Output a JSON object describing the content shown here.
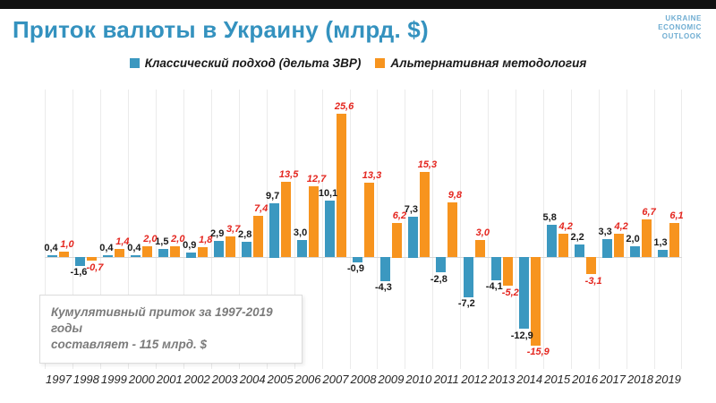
{
  "header": {
    "title": "Приток валюты в Украину (млрд. $)",
    "logo_lines": [
      "UKRAINE",
      "ECONOMIC",
      "OUTLOOK"
    ]
  },
  "annotation": {
    "line1": "Кумулятивный приток за 1997-2019 годы",
    "line2": "составляет - 115 млрд. $"
  },
  "colors": {
    "title_blue": "#3492bf",
    "logo_blue": "#6fadd2",
    "classic_bar": "#3b98c0",
    "alt_bar": "#f7941e",
    "classic_label": "#1a1a1a",
    "alt_label": "#e4261f",
    "topbar": "#111111"
  },
  "chart_data": {
    "type": "bar",
    "title": "Приток валюты в Украину (млрд. $)",
    "categories": [
      "1997",
      "1998",
      "1999",
      "2000",
      "2001",
      "2002",
      "2003",
      "2004",
      "2005",
      "2006",
      "2007",
      "2008",
      "2009",
      "2010",
      "2011",
      "2012",
      "2013",
      "2014",
      "2015",
      "2016",
      "2017",
      "2018",
      "2019"
    ],
    "series": [
      {
        "name": "Классический подход (дельта ЗВР)",
        "color": "#3b98c0",
        "label_color": "#1a1a1a",
        "values": [
          0.4,
          -1.6,
          0.4,
          0.4,
          1.5,
          0.9,
          2.9,
          2.8,
          9.7,
          3.0,
          10.1,
          -0.9,
          -4.3,
          7.3,
          -2.8,
          -7.2,
          -4.1,
          -12.9,
          5.8,
          2.2,
          3.3,
          2.0,
          1.3
        ],
        "labels": [
          "0,4",
          "-1,6",
          "0,4",
          "0,4",
          "1,5",
          "0,9",
          "2,9",
          "2,8",
          "9,7",
          "3,0",
          "10,1",
          "-0,9",
          "-4,3",
          "7,3",
          "-2,8",
          "-7,2",
          "-4,1",
          "-12,9",
          "5,8",
          "2,2",
          "3,3",
          "2,0",
          "1,3"
        ]
      },
      {
        "name": "Альтернативная методология",
        "color": "#f7941e",
        "label_color": "#e4261f",
        "values": [
          1.0,
          -0.7,
          1.4,
          2.0,
          2.0,
          1.8,
          3.7,
          7.4,
          13.5,
          12.7,
          25.6,
          13.3,
          6.2,
          15.3,
          9.8,
          3.0,
          -5.2,
          -15.9,
          4.2,
          -3.1,
          4.2,
          6.7,
          6.1
        ],
        "labels": [
          "1,0",
          "-0,7",
          "1,4",
          "2,0",
          "2,0",
          "1,8",
          "3,7",
          "7,4",
          "13,5",
          "12,7",
          "25,6",
          "13,3",
          "6,2",
          "15,3",
          "9,8",
          "3,0",
          "-5,2",
          "-15,9",
          "4,2",
          "-3,1",
          "4,2",
          "6,7",
          "6,1"
        ]
      }
    ],
    "ylabel": "млрд. $",
    "xlabel": "",
    "ylim": [
      -20,
      30
    ],
    "grid": "vertical-only",
    "legend_position": "top-center",
    "annotation": "Кумулятивный приток за 1997-2019 годы составляет - 115 млрд. $"
  }
}
